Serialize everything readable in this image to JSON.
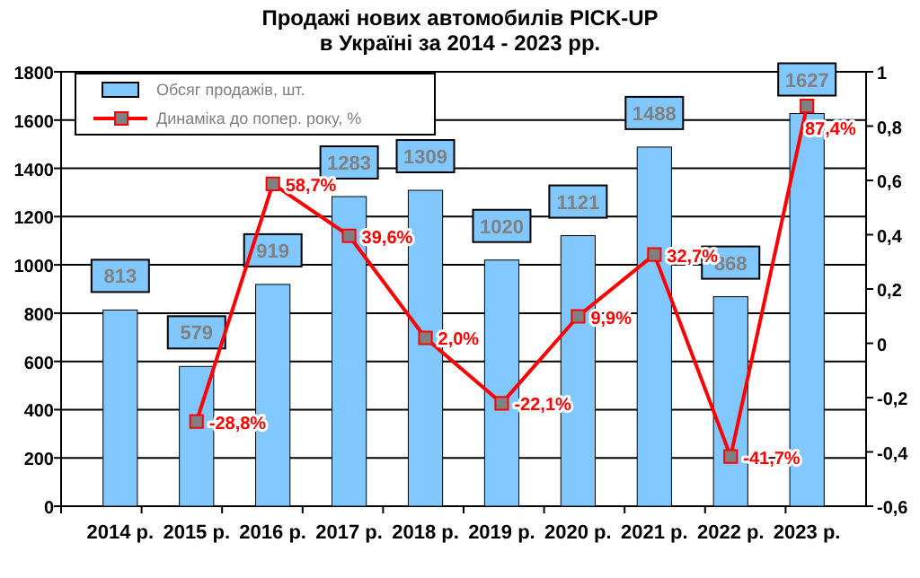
{
  "chart_data": {
    "type": "bar",
    "title": "Продажі нових автомобилів  PICK-UP\nв Україні за 2014 - 2023  рр.",
    "categories": [
      "2014 р.",
      "2015 р.",
      "2016 р.",
      "2017 р.",
      "2018 р.",
      "2019 р.",
      "2020 р.",
      "2021 р.",
      "2022 р.",
      "2023 р."
    ],
    "series": [
      {
        "name": "Обсяг продажів, шт.",
        "type": "bar",
        "color": "#80c8ff",
        "values": [
          813,
          579,
          919,
          1283,
          1309,
          1020,
          1121,
          1488,
          868,
          1627
        ],
        "data_labels": true
      },
      {
        "name": "Динаміка до попер. року, %",
        "type": "line",
        "axis": "y2",
        "color": "#ff0000",
        "marker": "square",
        "values": [
          null,
          -0.288,
          0.587,
          0.396,
          0.02,
          -0.221,
          0.099,
          0.327,
          -0.417,
          0.874
        ],
        "value_labels": [
          null,
          "-28,8%",
          "58,7%",
          "39,6%",
          "2,0%",
          "-22,1%",
          "9,9%",
          "32,7%",
          "-41,7%",
          "87,4%"
        ]
      }
    ],
    "ylim": [
      0,
      1800
    ],
    "yticks": [
      0,
      200,
      400,
      600,
      800,
      1000,
      1200,
      1400,
      1600,
      1800
    ],
    "y2lim": [
      -0.6,
      1
    ],
    "y2ticks": [
      {
        "value": -0.6,
        "label": "-0,6"
      },
      {
        "value": -0.4,
        "label": "-0,4"
      },
      {
        "value": -0.2,
        "label": "-0,2"
      },
      0,
      {
        "value": 0.2,
        "label": "0,2"
      },
      {
        "value": 0.4,
        "label": "0,4"
      },
      {
        "value": 0.6,
        "label": "0,6"
      },
      {
        "value": 0.8,
        "label": "0,8"
      },
      1
    ],
    "grid": "y",
    "legend": "top left"
  }
}
